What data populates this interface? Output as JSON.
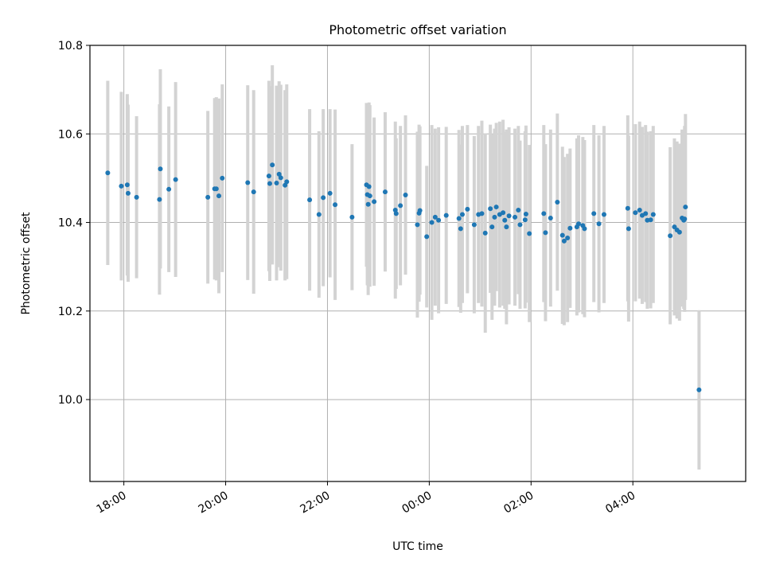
{
  "chart_data": {
    "type": "scatter",
    "title": "Photometric offset variation",
    "xlabel": "UTC time",
    "ylabel": "Photometric offset",
    "x_is_time": true,
    "xlim": [
      "17:20",
      "06:13"
    ],
    "ylim": [
      9.815,
      10.8
    ],
    "grid": true,
    "x_ticks": [
      "18:00",
      "20:00",
      "22:00",
      "00:00",
      "02:00",
      "04:00"
    ],
    "y_ticks": [
      "10.0",
      "10.2",
      "10.4",
      "10.6",
      "10.8"
    ],
    "colors": {
      "point": "#1f77b4",
      "errorbar": "#d3d3d3",
      "grid": "#b0b0b0",
      "axis": "#000000"
    },
    "points": [
      {
        "t": "17:41",
        "y": 10.512,
        "err": 0.208
      },
      {
        "t": "17:57",
        "y": 10.482,
        "err": 0.213
      },
      {
        "t": "18:04",
        "y": 10.485,
        "err": 0.205
      },
      {
        "t": "18:05",
        "y": 10.466,
        "err": 0.2
      },
      {
        "t": "18:15",
        "y": 10.457,
        "err": 0.183
      },
      {
        "t": "18:42",
        "y": 10.452,
        "err": 0.215
      },
      {
        "t": "18:43",
        "y": 10.521,
        "err": 0.225
      },
      {
        "t": "18:53",
        "y": 10.475,
        "err": 0.187
      },
      {
        "t": "19:01",
        "y": 10.497,
        "err": 0.22
      },
      {
        "t": "19:39",
        "y": 10.457,
        "err": 0.195
      },
      {
        "t": "19:47",
        "y": 10.476,
        "err": 0.205
      },
      {
        "t": "19:49",
        "y": 10.476,
        "err": 0.207
      },
      {
        "t": "19:52",
        "y": 10.46,
        "err": 0.22
      },
      {
        "t": "19:56",
        "y": 10.5,
        "err": 0.212
      },
      {
        "t": "20:26",
        "y": 10.49,
        "err": 0.22
      },
      {
        "t": "20:33",
        "y": 10.469,
        "err": 0.23
      },
      {
        "t": "20:51",
        "y": 10.505,
        "err": 0.215
      },
      {
        "t": "20:52",
        "y": 10.488,
        "err": 0.22
      },
      {
        "t": "20:55",
        "y": 10.53,
        "err": 0.225
      },
      {
        "t": "21:00",
        "y": 10.489,
        "err": 0.22
      },
      {
        "t": "21:03",
        "y": 10.509,
        "err": 0.21
      },
      {
        "t": "21:05",
        "y": 10.501,
        "err": 0.21
      },
      {
        "t": "21:10",
        "y": 10.484,
        "err": 0.215
      },
      {
        "t": "21:12",
        "y": 10.492,
        "err": 0.22
      },
      {
        "t": "21:39",
        "y": 10.451,
        "err": 0.205
      },
      {
        "t": "21:50",
        "y": 10.418,
        "err": 0.188
      },
      {
        "t": "21:55",
        "y": 10.456,
        "err": 0.2
      },
      {
        "t": "22:03",
        "y": 10.466,
        "err": 0.19
      },
      {
        "t": "22:09",
        "y": 10.44,
        "err": 0.215
      },
      {
        "t": "22:29",
        "y": 10.412,
        "err": 0.165
      },
      {
        "t": "22:46",
        "y": 10.485,
        "err": 0.185
      },
      {
        "t": "22:47",
        "y": 10.463,
        "err": 0.205
      },
      {
        "t": "22:48",
        "y": 10.441,
        "err": 0.205
      },
      {
        "t": "22:49",
        "y": 10.481,
        "err": 0.19
      },
      {
        "t": "22:50",
        "y": 10.46,
        "err": 0.205
      },
      {
        "t": "22:55",
        "y": 10.447,
        "err": 0.19
      },
      {
        "t": "23:08",
        "y": 10.469,
        "err": 0.18
      },
      {
        "t": "23:20",
        "y": 10.428,
        "err": 0.2
      },
      {
        "t": "23:21",
        "y": 10.42,
        "err": 0.17
      },
      {
        "t": "23:26",
        "y": 10.438,
        "err": 0.18
      },
      {
        "t": "23:32",
        "y": 10.462,
        "err": 0.18
      },
      {
        "t": "23:46",
        "y": 10.395,
        "err": 0.21
      },
      {
        "t": "23:48",
        "y": 10.421,
        "err": 0.2
      },
      {
        "t": "23:49",
        "y": 10.427,
        "err": 0.19
      },
      {
        "t": "23:57",
        "y": 10.368,
        "err": 0.16
      },
      {
        "t": "00:03",
        "y": 10.4,
        "err": 0.22
      },
      {
        "t": "00:07",
        "y": 10.412,
        "err": 0.2
      },
      {
        "t": "00:11",
        "y": 10.405,
        "err": 0.21
      },
      {
        "t": "00:20",
        "y": 10.416,
        "err": 0.2
      },
      {
        "t": "00:35",
        "y": 10.409,
        "err": 0.2
      },
      {
        "t": "00:37",
        "y": 10.386,
        "err": 0.19
      },
      {
        "t": "00:39",
        "y": 10.418,
        "err": 0.2
      },
      {
        "t": "00:45",
        "y": 10.43,
        "err": 0.19
      },
      {
        "t": "00:53",
        "y": 10.395,
        "err": 0.2
      },
      {
        "t": "00:58",
        "y": 10.418,
        "err": 0.2
      },
      {
        "t": "01:02",
        "y": 10.42,
        "err": 0.21
      },
      {
        "t": "01:06",
        "y": 10.376,
        "err": 0.225
      },
      {
        "t": "01:12",
        "y": 10.431,
        "err": 0.19
      },
      {
        "t": "01:14",
        "y": 10.39,
        "err": 0.21
      },
      {
        "t": "01:17",
        "y": 10.412,
        "err": 0.2
      },
      {
        "t": "01:19",
        "y": 10.435,
        "err": 0.19
      },
      {
        "t": "01:23",
        "y": 10.418,
        "err": 0.21
      },
      {
        "t": "01:27",
        "y": 10.422,
        "err": 0.21
      },
      {
        "t": "01:29",
        "y": 10.405,
        "err": 0.2
      },
      {
        "t": "01:31",
        "y": 10.39,
        "err": 0.22
      },
      {
        "t": "01:34",
        "y": 10.415,
        "err": 0.2
      },
      {
        "t": "01:41",
        "y": 10.412,
        "err": 0.2
      },
      {
        "t": "01:45",
        "y": 10.428,
        "err": 0.19
      },
      {
        "t": "01:47",
        "y": 10.395,
        "err": 0.19
      },
      {
        "t": "01:53",
        "y": 10.406,
        "err": 0.2
      },
      {
        "t": "01:54",
        "y": 10.419,
        "err": 0.2
      },
      {
        "t": "01:58",
        "y": 10.375,
        "err": 0.2
      },
      {
        "t": "02:15",
        "y": 10.42,
        "err": 0.2
      },
      {
        "t": "02:17",
        "y": 10.377,
        "err": 0.2
      },
      {
        "t": "02:23",
        "y": 10.41,
        "err": 0.2
      },
      {
        "t": "02:31",
        "y": 10.446,
        "err": 0.2
      },
      {
        "t": "02:37",
        "y": 10.371,
        "err": 0.2
      },
      {
        "t": "02:39",
        "y": 10.358,
        "err": 0.19
      },
      {
        "t": "02:43",
        "y": 10.365,
        "err": 0.19
      },
      {
        "t": "02:46",
        "y": 10.387,
        "err": 0.18
      },
      {
        "t": "02:54",
        "y": 10.39,
        "err": 0.2
      },
      {
        "t": "02:56",
        "y": 10.397,
        "err": 0.2
      },
      {
        "t": "03:01",
        "y": 10.393,
        "err": 0.2
      },
      {
        "t": "03:03",
        "y": 10.386,
        "err": 0.2
      },
      {
        "t": "03:14",
        "y": 10.42,
        "err": 0.2
      },
      {
        "t": "03:20",
        "y": 10.397,
        "err": 0.2
      },
      {
        "t": "03:26",
        "y": 10.418,
        "err": 0.2
      },
      {
        "t": "03:54",
        "y": 10.432,
        "err": 0.21
      },
      {
        "t": "03:55",
        "y": 10.386,
        "err": 0.21
      },
      {
        "t": "04:03",
        "y": 10.422,
        "err": 0.2
      },
      {
        "t": "04:08",
        "y": 10.428,
        "err": 0.2
      },
      {
        "t": "04:11",
        "y": 10.416,
        "err": 0.2
      },
      {
        "t": "04:15",
        "y": 10.42,
        "err": 0.2
      },
      {
        "t": "04:17",
        "y": 10.405,
        "err": 0.2
      },
      {
        "t": "04:21",
        "y": 10.406,
        "err": 0.2
      },
      {
        "t": "04:24",
        "y": 10.418,
        "err": 0.2
      },
      {
        "t": "04:44",
        "y": 10.37,
        "err": 0.2
      },
      {
        "t": "04:49",
        "y": 10.39,
        "err": 0.2
      },
      {
        "t": "04:52",
        "y": 10.383,
        "err": 0.2
      },
      {
        "t": "04:55",
        "y": 10.378,
        "err": 0.2
      },
      {
        "t": "04:58",
        "y": 10.41,
        "err": 0.2
      },
      {
        "t": "05:00",
        "y": 10.405,
        "err": 0.2
      },
      {
        "t": "05:01",
        "y": 10.408,
        "err": 0.21
      },
      {
        "t": "05:02",
        "y": 10.435,
        "err": 0.21
      },
      {
        "t": "05:18",
        "y": 10.022,
        "err": 0.18
      }
    ]
  }
}
